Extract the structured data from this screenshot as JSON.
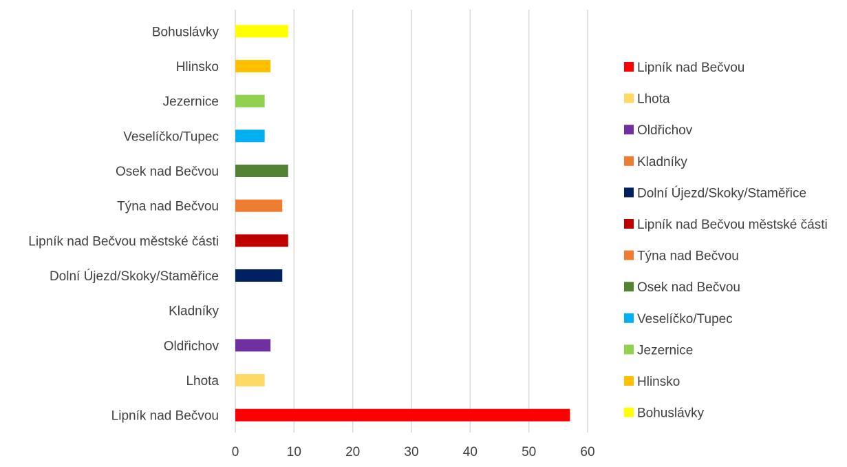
{
  "chart_data": {
    "type": "bar",
    "orientation": "horizontal",
    "categories": [
      "Lipník nad Bečvou",
      "Lhota",
      "Oldřichov",
      "Kladníky",
      "Dolní Újezd/Skoky/Staměřice",
      "Lipník nad Bečvou městské části",
      "Týna nad Bečvou",
      "Osek nad Bečvou",
      "Veselíčko/Tupec",
      "Jezernice",
      "Hlinsko",
      "Bohuslávky"
    ],
    "series": [
      {
        "name": "Lipník nad Bečvou",
        "values": [
          57,
          null,
          null,
          null,
          null,
          null,
          null,
          null,
          null,
          null,
          null,
          null
        ],
        "color": "#ff0000"
      },
      {
        "name": "Lhota",
        "values": [
          null,
          5,
          null,
          null,
          null,
          null,
          null,
          null,
          null,
          null,
          null,
          null
        ],
        "color": "#ffd966"
      },
      {
        "name": "Oldřichov",
        "values": [
          null,
          null,
          6,
          null,
          null,
          null,
          null,
          null,
          null,
          null,
          null,
          null
        ],
        "color": "#7030a0"
      },
      {
        "name": "Kladníky",
        "values": [
          null,
          null,
          null,
          0,
          null,
          null,
          null,
          null,
          null,
          null,
          null,
          null
        ],
        "color": "#ed7d31"
      },
      {
        "name": "Dolní Újezd/Skoky/Staměřice",
        "values": [
          null,
          null,
          null,
          null,
          8,
          null,
          null,
          null,
          null,
          null,
          null,
          null
        ],
        "color": "#002060"
      },
      {
        "name": "Lipník nad Bečvou městské části",
        "values": [
          null,
          null,
          null,
          null,
          null,
          9,
          null,
          null,
          null,
          null,
          null,
          null
        ],
        "color": "#c00000"
      },
      {
        "name": "Týna nad Bečvou",
        "values": [
          null,
          null,
          null,
          null,
          null,
          null,
          8,
          null,
          null,
          null,
          null,
          null
        ],
        "color": "#ed7d31"
      },
      {
        "name": "Osek nad Bečvou",
        "values": [
          null,
          null,
          null,
          null,
          null,
          null,
          null,
          9,
          null,
          null,
          null,
          null
        ],
        "color": "#548235"
      },
      {
        "name": "Veselíčko/Tupec",
        "values": [
          null,
          null,
          null,
          null,
          null,
          null,
          null,
          null,
          5,
          null,
          null,
          null
        ],
        "color": "#00b0f0"
      },
      {
        "name": "Jezernice",
        "values": [
          null,
          null,
          null,
          null,
          null,
          null,
          null,
          null,
          null,
          5,
          null,
          null
        ],
        "color": "#92d050"
      },
      {
        "name": "Hlinsko",
        "values": [
          null,
          null,
          null,
          null,
          null,
          null,
          null,
          null,
          null,
          null,
          6,
          null
        ],
        "color": "#ffc000"
      },
      {
        "name": "Bohuslávky",
        "values": [
          null,
          null,
          null,
          null,
          null,
          null,
          null,
          null,
          null,
          null,
          null,
          9
        ],
        "color": "#ffff00"
      }
    ],
    "xlim": [
      0,
      60
    ],
    "x_ticks": [
      "0",
      "10",
      "20",
      "30",
      "40",
      "50",
      "60"
    ],
    "grid": "vertical",
    "legend_position": "right",
    "title": "",
    "xlabel": "",
    "ylabel": ""
  }
}
